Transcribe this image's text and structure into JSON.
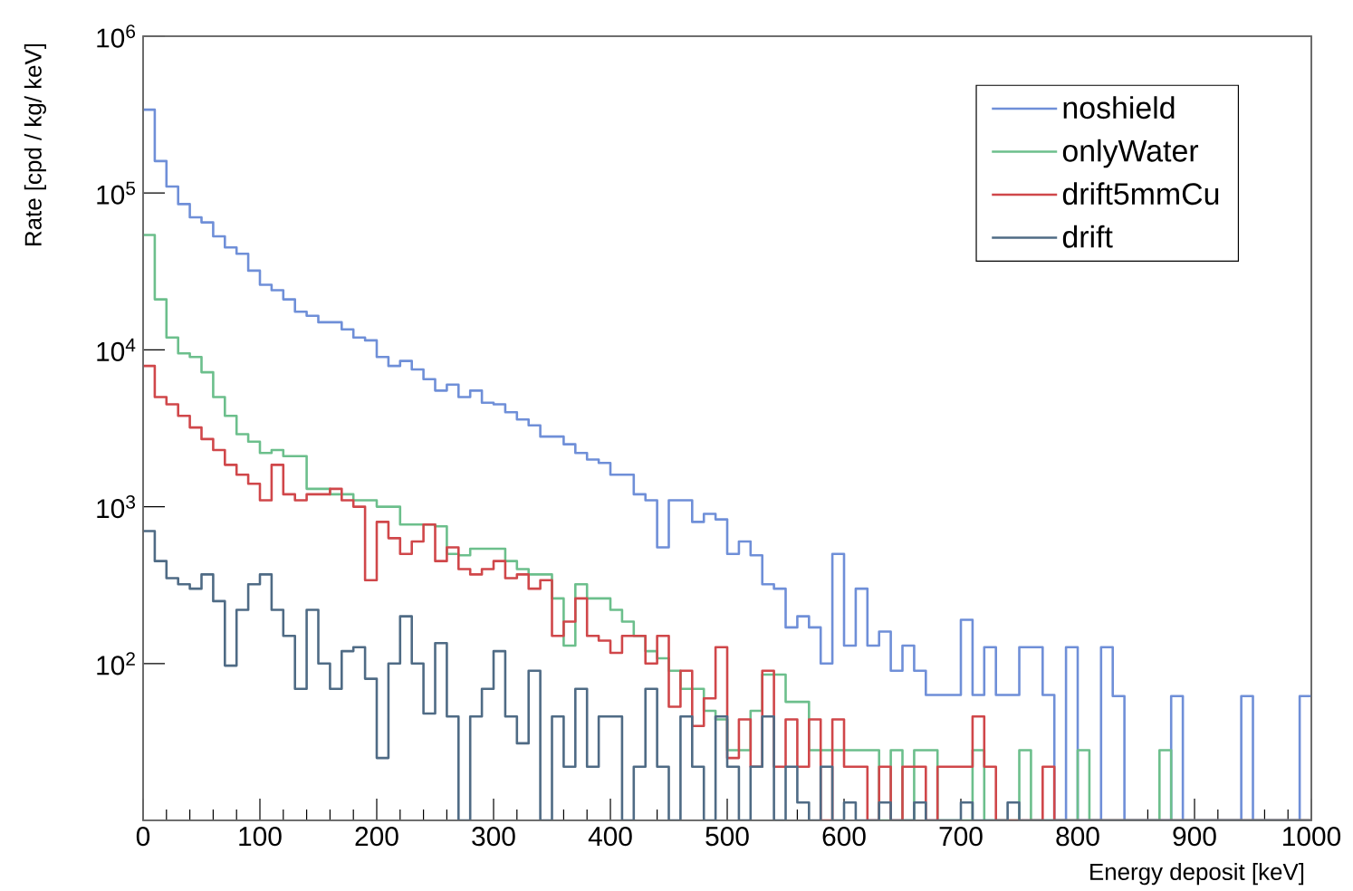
{
  "chart_data": {
    "type": "histogram",
    "xlabel": "Energy deposit [keV]",
    "ylabel": "Rate [cpd / kg/ keV]",
    "log": "y",
    "legend": "top right",
    "xlim": [
      0,
      1000
    ],
    "ylim": [
      10,
      1000000
    ],
    "xticks": [
      0,
      100,
      200,
      300,
      400,
      500,
      600,
      700,
      800,
      900,
      1000
    ],
    "yticks": [
      {
        "value": 100,
        "label": "10$^{2}$"
      },
      {
        "value": 1000,
        "label": "10$^{3}$"
      },
      {
        "value": 10000,
        "label": "10$^{4}$"
      },
      {
        "value": 100000,
        "label": "10$^{5}$"
      },
      {
        "value": 1000000,
        "label": "10$^{6}$"
      }
    ],
    "bins": [
      0,
      10,
      20,
      30,
      40,
      50,
      60,
      70,
      80,
      90,
      100,
      110,
      120,
      130,
      140,
      150,
      160,
      170,
      180,
      190,
      200,
      210,
      220,
      230,
      240,
      250,
      260,
      270,
      280,
      290,
      300,
      310,
      320,
      330,
      340,
      350,
      360,
      370,
      380,
      390,
      400,
      410,
      420,
      430,
      440,
      450,
      460,
      470,
      480,
      490,
      500,
      510,
      520,
      530,
      540,
      550,
      560,
      570,
      580,
      590,
      600,
      610,
      620,
      630,
      640,
      650,
      660,
      670,
      680,
      690,
      700,
      710,
      720,
      730,
      740,
      750,
      760,
      770,
      780,
      790,
      800,
      810,
      820,
      830,
      840,
      850,
      860,
      870,
      880,
      890,
      900,
      910,
      920,
      930,
      940,
      950,
      960,
      970,
      980,
      990,
      1000
    ],
    "series": [
      {
        "name": "noshield",
        "color": "#6f8fd8",
        "values": [
          340000,
          160000,
          110000,
          85000,
          70000,
          65000,
          53000,
          45000,
          41000,
          32000,
          26000,
          24000,
          21000,
          17500,
          16500,
          15000,
          15000,
          13500,
          12000,
          11500,
          9000,
          7900,
          8500,
          7500,
          6500,
          5500,
          6000,
          5000,
          5500,
          4600,
          4500,
          4000,
          3600,
          3300,
          2800,
          2800,
          2500,
          2200,
          2000,
          1900,
          1600,
          1600,
          1200,
          1100,
          550,
          1100,
          1100,
          800,
          900,
          830,
          500,
          600,
          490,
          320,
          300,
          170,
          200,
          170,
          100,
          500,
          130,
          300,
          130,
          160,
          90,
          130,
          90,
          63,
          63,
          63,
          190,
          63,
          127,
          63,
          63,
          127,
          127,
          63,
          null,
          127,
          null,
          null,
          127,
          62,
          null,
          null,
          null,
          null,
          62,
          null,
          null,
          null,
          null,
          null,
          62,
          null,
          null,
          null,
          null,
          62
        ]
      },
      {
        "name": "onlyWater",
        "color": "#6cbf8c",
        "values": [
          54000,
          21000,
          12000,
          9500,
          9000,
          7200,
          5000,
          3800,
          2900,
          2600,
          2200,
          2300,
          2100,
          2100,
          1300,
          1300,
          1200,
          1200,
          1100,
          1100,
          1000,
          1000,
          770,
          770,
          770,
          750,
          500,
          490,
          540,
          540,
          540,
          450,
          400,
          370,
          370,
          260,
          130,
          320,
          260,
          260,
          220,
          185,
          150,
          120,
          108,
          90,
          69,
          69,
          50,
          44,
          28,
          28,
          50,
          85,
          85,
          57,
          57,
          28,
          28,
          28,
          28,
          28,
          28,
          null,
          28,
          null,
          28,
          28,
          null,
          null,
          null,
          28,
          null,
          null,
          null,
          28,
          null,
          null,
          null,
          null,
          28,
          null,
          null,
          null,
          null,
          null,
          null,
          28,
          null,
          null,
          null,
          null,
          null,
          null,
          null,
          null,
          null,
          null,
          null,
          null
        ]
      },
      {
        "name": "drift5mmCu",
        "color": "#d0474a",
        "values": [
          7900,
          5000,
          4500,
          3800,
          3200,
          2700,
          2300,
          1850,
          1600,
          1400,
          1100,
          1850,
          1200,
          1100,
          1200,
          1200,
          1300,
          1100,
          1000,
          340,
          800,
          630,
          500,
          600,
          770,
          450,
          550,
          400,
          370,
          400,
          450,
          350,
          370,
          300,
          340,
          150,
          185,
          260,
          150,
          140,
          117,
          150,
          150,
          100,
          150,
          53,
          90,
          40,
          60,
          127,
          25,
          44,
          22,
          90,
          22,
          44,
          22,
          44,
          null,
          44,
          22,
          22,
          null,
          22,
          null,
          22,
          22,
          null,
          22,
          22,
          22,
          46,
          22,
          null,
          null,
          null,
          null,
          22,
          null,
          null,
          null,
          null,
          null,
          null,
          null,
          null,
          null,
          null,
          null,
          null,
          null,
          null,
          null,
          null,
          null,
          null,
          null,
          null,
          null,
          null
        ]
      },
      {
        "name": "drift",
        "color": "#4f6b85",
        "values": [
          700,
          450,
          350,
          320,
          300,
          370,
          250,
          97,
          220,
          320,
          370,
          220,
          150,
          69,
          220,
          100,
          69,
          120,
          127,
          80,
          25,
          100,
          200,
          100,
          48,
          135,
          46,
          null,
          46,
          69,
          120,
          46,
          31,
          90,
          null,
          46,
          22,
          69,
          22,
          46,
          46,
          null,
          22,
          69,
          22,
          null,
          46,
          22,
          null,
          46,
          22,
          null,
          22,
          46,
          null,
          22,
          13,
          null,
          22,
          null,
          13,
          null,
          null,
          13,
          null,
          null,
          13,
          null,
          null,
          null,
          13,
          null,
          null,
          null,
          13,
          null,
          null,
          null,
          null,
          null,
          null,
          null,
          null,
          null,
          null,
          null,
          null,
          null,
          null,
          null,
          null,
          null,
          null,
          null,
          null,
          null,
          null,
          null,
          null,
          null
        ]
      }
    ]
  }
}
